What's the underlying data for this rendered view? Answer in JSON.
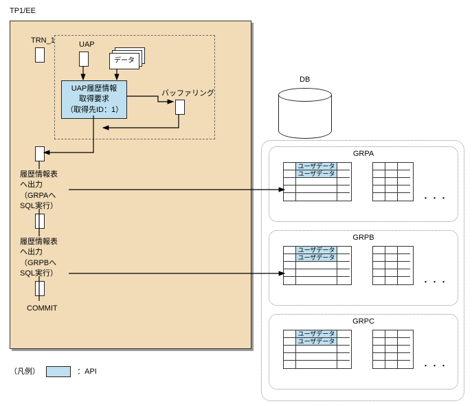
{
  "title": "TP1/EE",
  "trn_label": "TRN_1",
  "uap_label": "UAP",
  "data_label": "データ",
  "api_box": {
    "line1": "UAP履歴情報",
    "line2": "取得要求",
    "line3": "（取得先ID：1）"
  },
  "buffering_label": "バッファリング",
  "output_a": {
    "line1": "履歴情報表",
    "line2": "へ出力",
    "line3": "（GRPAへ",
    "line4": "SQL実行）"
  },
  "output_b": {
    "line1": "履歴情報表",
    "line2": "へ出力",
    "line3": "（GRPBへ",
    "line4": "SQL実行）"
  },
  "commit_label": "COMMIT",
  "db_label": "DB",
  "groups": {
    "a": "GRPA",
    "b": "GRPB",
    "c": "GRPC"
  },
  "userdata_label": "ユーザデータ",
  "legend": {
    "caption": "（凡例）",
    "api": "：API"
  },
  "colors": {
    "panel_bg": "#f2dcb8",
    "api_bg": "#bedff0",
    "border": "#222222",
    "dotted": "#888888"
  }
}
